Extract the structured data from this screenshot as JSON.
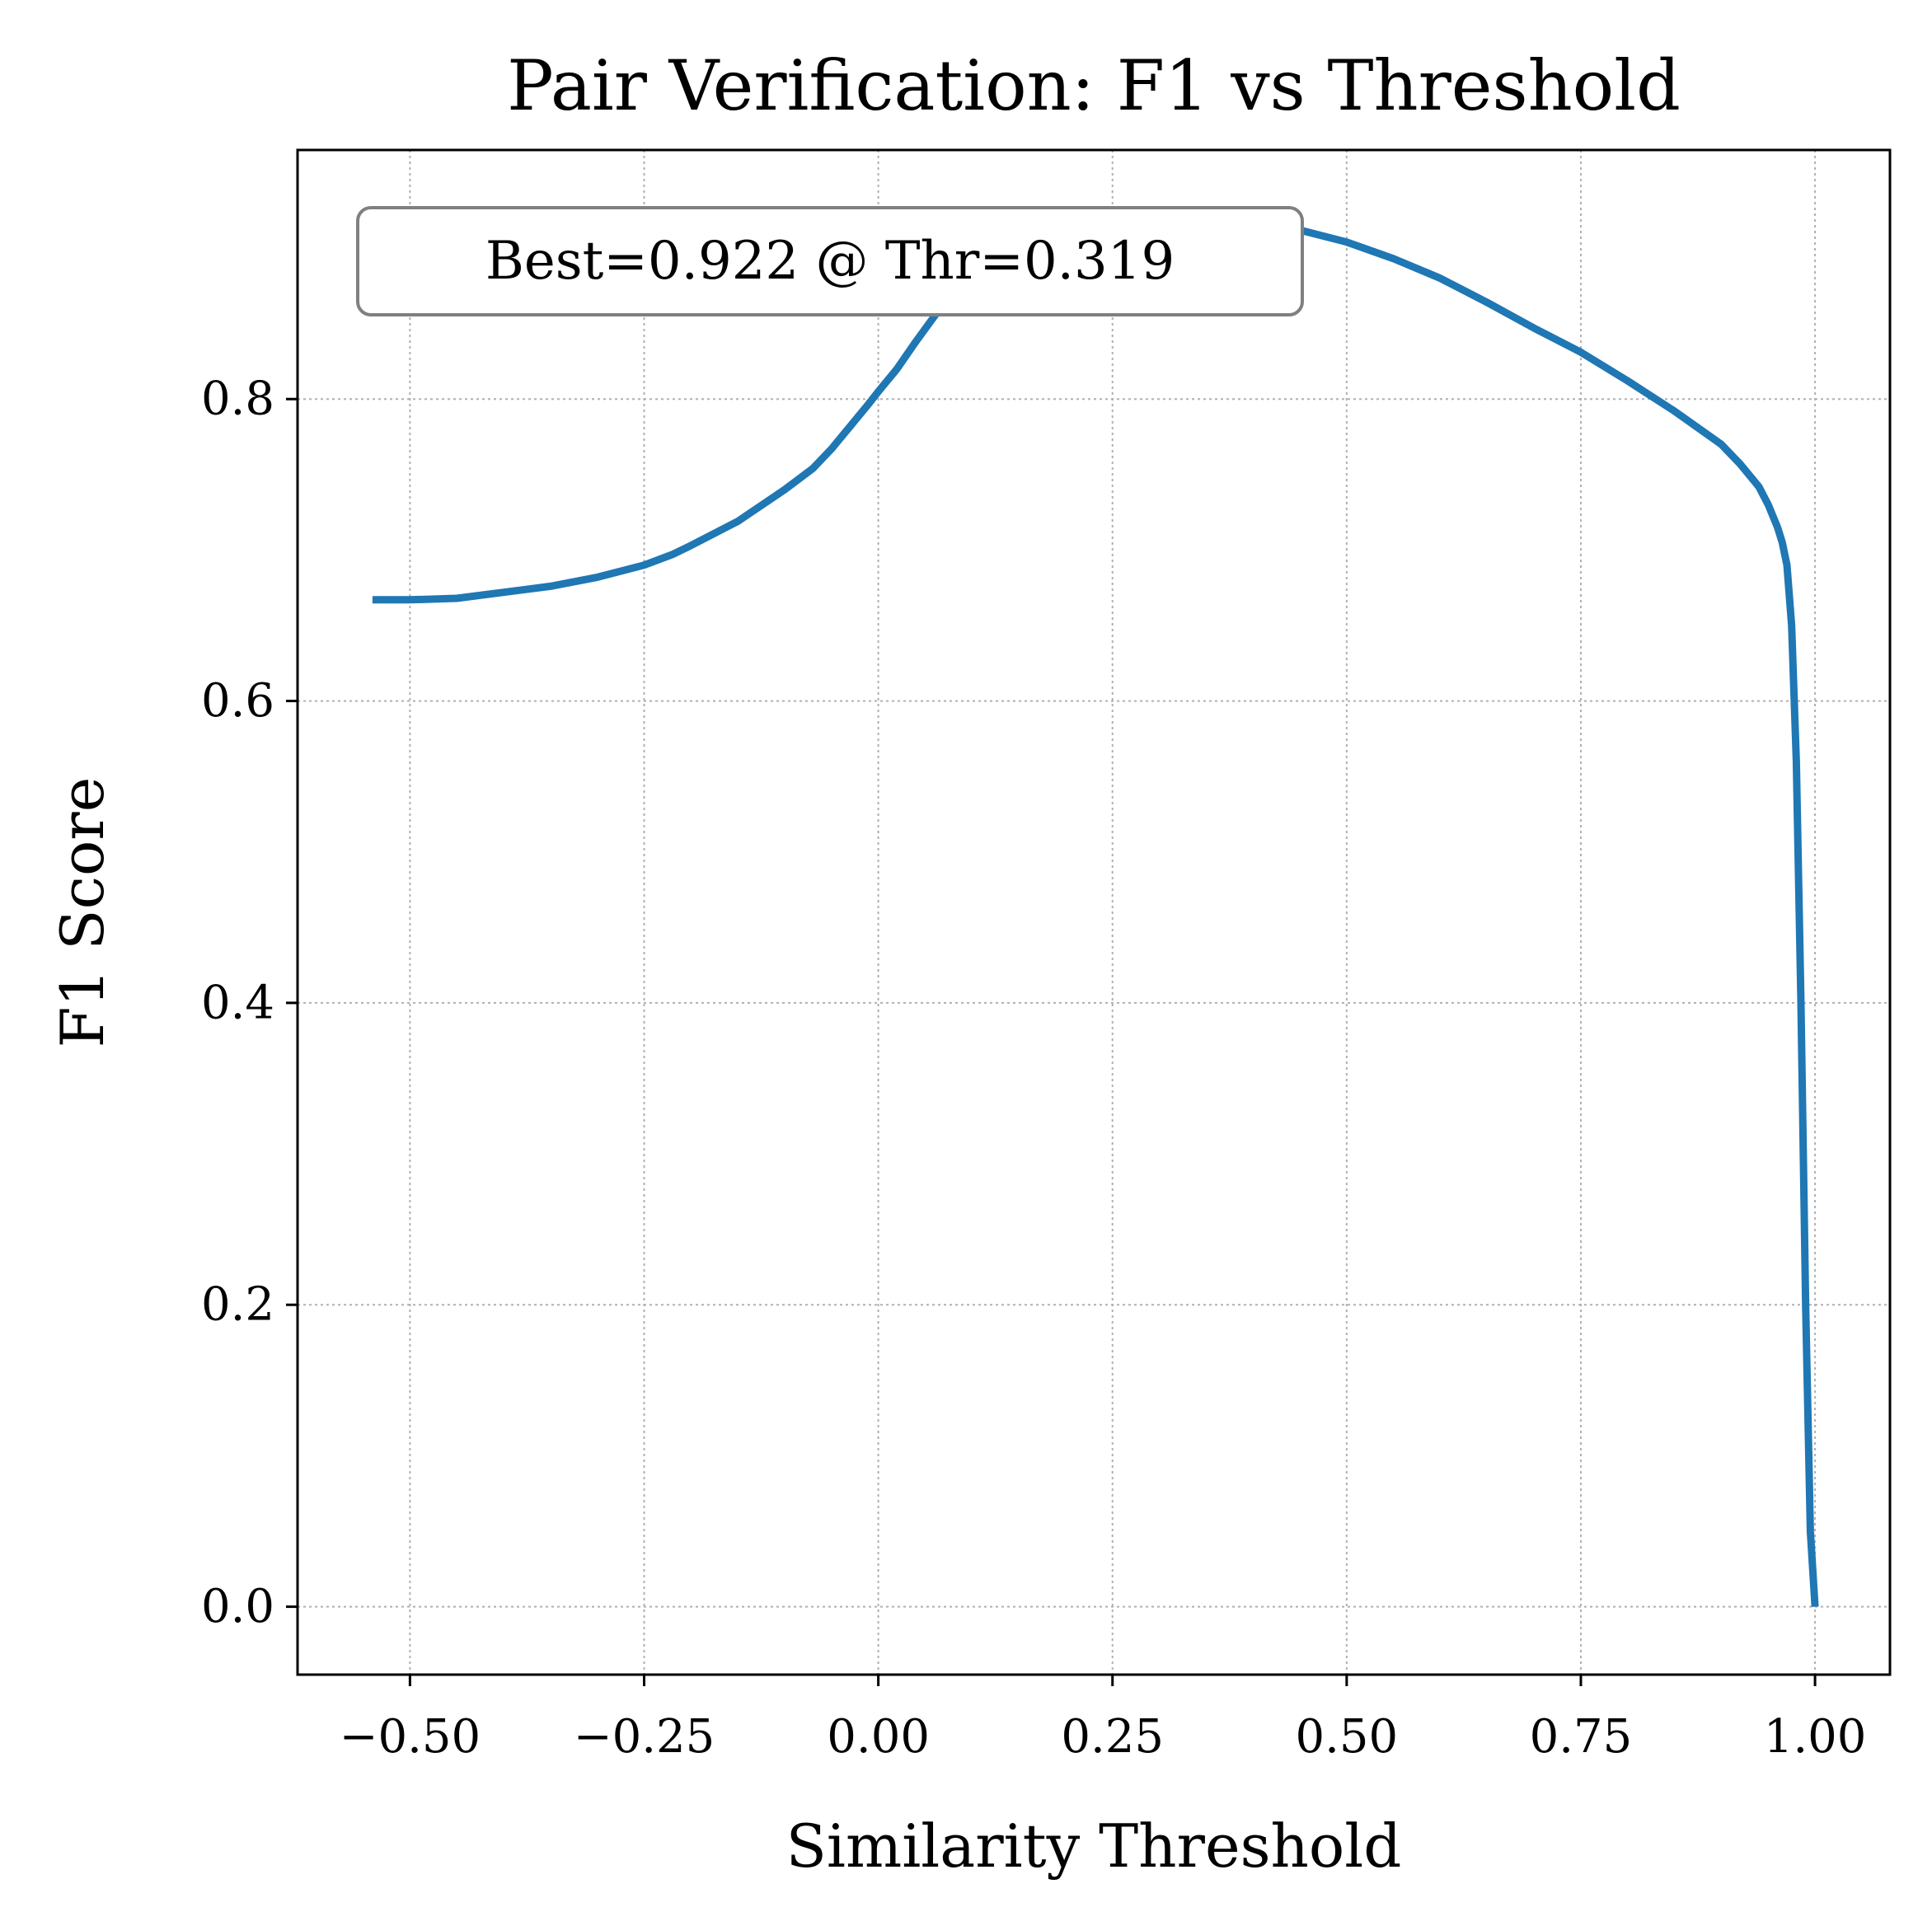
{
  "chart_data": {
    "type": "line",
    "title": "Pair Verification: F1 vs Threshold",
    "xlabel": "Similarity Threshold",
    "ylabel": "F1 Score",
    "xlim": [
      -0.62,
      1.08
    ],
    "ylim": [
      -0.045,
      0.965
    ],
    "xticks": [
      -0.5,
      -0.25,
      0.0,
      0.25,
      0.5,
      0.75,
      1.0
    ],
    "xtick_labels": [
      "−0.50",
      "−0.25",
      "0.00",
      "0.25",
      "0.50",
      "0.75",
      "1.00"
    ],
    "yticks": [
      0.0,
      0.2,
      0.4,
      0.6,
      0.8
    ],
    "ytick_labels": [
      "0.0",
      "0.2",
      "0.4",
      "0.6",
      "0.8"
    ],
    "grid": true,
    "line_color": "#1f77b4",
    "annotation": "Best=0.922 @ Thr=0.319",
    "series": [
      {
        "x": [
          -0.54,
          -0.5,
          -0.45,
          -0.4,
          -0.35,
          -0.3,
          -0.25,
          -0.22,
          -0.2,
          -0.15,
          -0.1,
          -0.07,
          -0.05,
          -0.03,
          -0.01,
          0.0,
          0.02,
          0.04,
          0.06,
          0.08,
          0.1,
          0.13,
          0.16,
          0.2,
          0.25,
          0.3,
          0.319,
          0.35,
          0.4,
          0.45,
          0.5,
          0.55,
          0.6,
          0.65,
          0.7,
          0.75,
          0.8,
          0.85,
          0.9,
          0.92,
          0.94,
          0.95,
          0.96,
          0.965,
          0.97,
          0.975,
          0.98,
          0.985,
          0.99,
          0.995,
          1.0
        ],
        "y": [
          0.667,
          0.667,
          0.668,
          0.672,
          0.676,
          0.682,
          0.69,
          0.697,
          0.703,
          0.719,
          0.74,
          0.754,
          0.767,
          0.782,
          0.797,
          0.805,
          0.82,
          0.838,
          0.855,
          0.872,
          0.885,
          0.9,
          0.91,
          0.916,
          0.92,
          0.921,
          0.922,
          0.921,
          0.918,
          0.912,
          0.904,
          0.893,
          0.88,
          0.864,
          0.847,
          0.831,
          0.812,
          0.792,
          0.77,
          0.757,
          0.742,
          0.73,
          0.715,
          0.705,
          0.69,
          0.65,
          0.56,
          0.4,
          0.2,
          0.05,
          0.0
        ]
      }
    ]
  }
}
